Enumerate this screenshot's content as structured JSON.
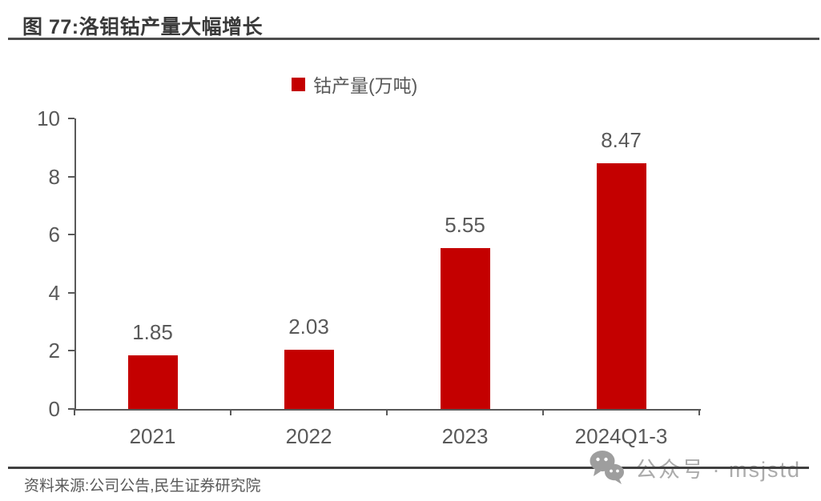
{
  "figure": {
    "title": "图 77:洛钼钴产量大幅增长",
    "source": "资料来源:公司公告,民生证券研究院"
  },
  "legend": {
    "label": "钴产量(万吨)",
    "swatch_color": "#c40000"
  },
  "watermark": {
    "icon": "wechat-icon",
    "label": "公众号",
    "separator": "·",
    "handle": "msjstd",
    "color": "#ababab"
  },
  "chart_data": {
    "type": "bar",
    "title": "",
    "categories": [
      "2021",
      "2022",
      "2023",
      "2024Q1-3"
    ],
    "values": [
      1.85,
      2.03,
      5.55,
      8.47
    ],
    "value_labels": [
      "1.85",
      "2.03",
      "5.55",
      "8.47"
    ],
    "legend": [
      {
        "name": "钴产量(万吨)",
        "color": "#c40000"
      }
    ],
    "bar_color": "#c40000",
    "label_color": "#595959",
    "axis_color": "#595959",
    "xlabel": "",
    "ylabel": "",
    "ylim": [
      0,
      10
    ],
    "yticks": [
      0,
      2,
      4,
      6,
      8,
      10
    ],
    "grid": false,
    "legend_position": "top-center"
  }
}
